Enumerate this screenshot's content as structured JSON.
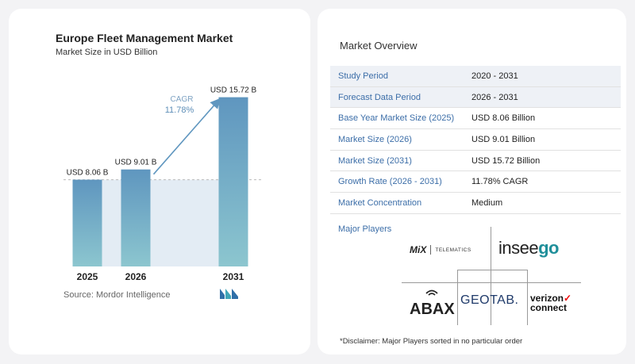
{
  "chart_data": {
    "type": "bar",
    "title": "Europe Fleet Management Market",
    "subtitle": "Market Size in USD Billion",
    "categories": [
      "2025",
      "2026",
      "2031"
    ],
    "values": [
      8.06,
      9.01,
      15.72
    ],
    "value_labels": [
      "USD 8.06 B",
      "USD 9.01 B",
      "USD 15.72 B"
    ],
    "ylim": [
      0,
      16.5
    ],
    "cagr_label": "CAGR",
    "cagr_value": "11.78%",
    "colors": {
      "bar_top": "#5f96bf",
      "bar_bottom": "#8cc6cf",
      "arrow": "#5f96bf",
      "band": "#e3ecf4"
    }
  },
  "source": "Source:  Mordor Intelligence",
  "overview": {
    "title": "Market Overview",
    "rows": [
      {
        "label": "Study Period",
        "value": "2020 - 2031"
      },
      {
        "label": "Forecast Data Period",
        "value": "2026 - 2031"
      },
      {
        "label": "Base Year Market Size (2025)",
        "value": "USD 8.06 Billion"
      },
      {
        "label": "Market Size (2026)",
        "value": "USD 9.01 Billion"
      },
      {
        "label": "Market Size (2031)",
        "value": "USD 15.72 Billion"
      },
      {
        "label": "Growth Rate (2026 - 2031)",
        "value": "11.78% CAGR"
      },
      {
        "label": "Market Concentration",
        "value": "Medium"
      }
    ]
  },
  "players": {
    "title": "Major Players",
    "logos": {
      "mix": {
        "name": "MiX",
        "sub": "TELEMATICS"
      },
      "inseego": {
        "part1": "insee",
        "part2": "go"
      },
      "abax": {
        "name": "ABAX"
      },
      "geotab": {
        "name": "GEOTAB."
      },
      "verizon": {
        "line1": "verizon",
        "line2": "connect"
      }
    },
    "disclaimer": "*Disclaimer: Major Players sorted in no particular order"
  }
}
